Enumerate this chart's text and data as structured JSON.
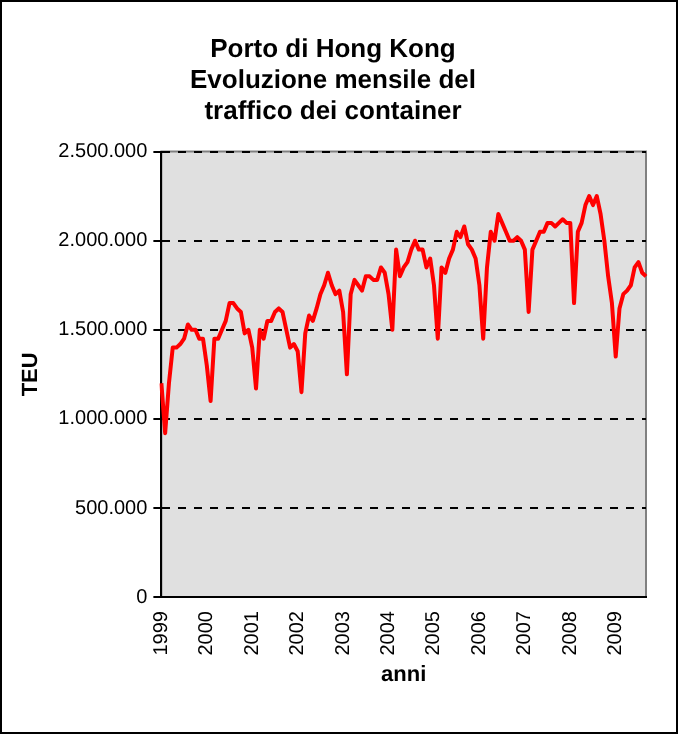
{
  "chart_data": {
    "type": "line",
    "title": "Porto di Hong Kong\nEvoluzione mensile del\ntraffico dei container",
    "xlabel": "anni",
    "ylabel": "TEU",
    "categories": [
      "1999",
      null,
      null,
      null,
      null,
      null,
      null,
      null,
      null,
      null,
      null,
      null,
      "2000",
      null,
      null,
      null,
      null,
      null,
      null,
      null,
      null,
      null,
      null,
      null,
      "2001",
      null,
      null,
      null,
      null,
      null,
      null,
      null,
      null,
      null,
      null,
      null,
      "2002",
      null,
      null,
      null,
      null,
      null,
      null,
      null,
      null,
      null,
      null,
      null,
      "2003",
      null,
      null,
      null,
      null,
      null,
      null,
      null,
      null,
      null,
      null,
      null,
      "2004",
      null,
      null,
      null,
      null,
      null,
      null,
      null,
      null,
      null,
      null,
      null,
      "2005",
      null,
      null,
      null,
      null,
      null,
      null,
      null,
      null,
      null,
      null,
      null,
      "2006",
      null,
      null,
      null,
      null,
      null,
      null,
      null,
      null,
      null,
      null,
      null,
      "2007",
      null,
      null,
      null,
      null,
      null,
      null,
      null,
      null,
      null,
      null,
      null,
      "2008",
      null,
      null,
      null,
      null,
      null,
      null,
      null,
      null,
      null,
      null,
      null,
      "2009",
      null,
      null,
      null,
      null,
      null,
      null,
      null,
      null
    ],
    "series": [
      {
        "color": "#ff0000",
        "values": [
          1200000,
          920000,
          1200000,
          1400000,
          1400000,
          1420000,
          1450000,
          1530000,
          1500000,
          1500000,
          1450000,
          1450000,
          1300000,
          1100000,
          1450000,
          1450000,
          1500000,
          1550000,
          1650000,
          1650000,
          1620000,
          1600000,
          1480000,
          1500000,
          1400000,
          1170000,
          1500000,
          1450000,
          1550000,
          1550000,
          1600000,
          1620000,
          1600000,
          1500000,
          1400000,
          1420000,
          1380000,
          1150000,
          1480000,
          1580000,
          1550000,
          1620000,
          1700000,
          1750000,
          1820000,
          1750000,
          1700000,
          1720000,
          1600000,
          1250000,
          1700000,
          1780000,
          1750000,
          1720000,
          1800000,
          1800000,
          1780000,
          1780000,
          1850000,
          1820000,
          1700000,
          1500000,
          1950000,
          1800000,
          1850000,
          1880000,
          1950000,
          2000000,
          1950000,
          1950000,
          1850000,
          1900000,
          1750000,
          1450000,
          1850000,
          1820000,
          1900000,
          1950000,
          2050000,
          2020000,
          2080000,
          1980000,
          1950000,
          1900000,
          1750000,
          1450000,
          1850000,
          2050000,
          2000000,
          2150000,
          2100000,
          2050000,
          2000000,
          2000000,
          2020000,
          2000000,
          1950000,
          1600000,
          1950000,
          2000000,
          2050000,
          2050000,
          2100000,
          2100000,
          2080000,
          2100000,
          2120000,
          2100000,
          2100000,
          1650000,
          2050000,
          2100000,
          2200000,
          2250000,
          2200000,
          2250000,
          2150000,
          2000000,
          1800000,
          1650000,
          1350000,
          1620000,
          1700000,
          1720000,
          1750000,
          1850000,
          1880000,
          1820000,
          1800000
        ]
      }
    ],
    "ylim": [
      0,
      2500000
    ],
    "yticks": [
      {
        "value": 0,
        "label": "0"
      },
      {
        "value": 500000,
        "label": "500.000"
      },
      {
        "value": 1000000,
        "label": "1.000.000"
      },
      {
        "value": 1500000,
        "label": "1.500.000"
      },
      {
        "value": 2000000,
        "label": "2.000.000"
      },
      {
        "value": 2500000,
        "label": "2.500.000"
      }
    ],
    "grid": "y",
    "legend": false,
    "marker": "none",
    "line_style": "solid"
  }
}
